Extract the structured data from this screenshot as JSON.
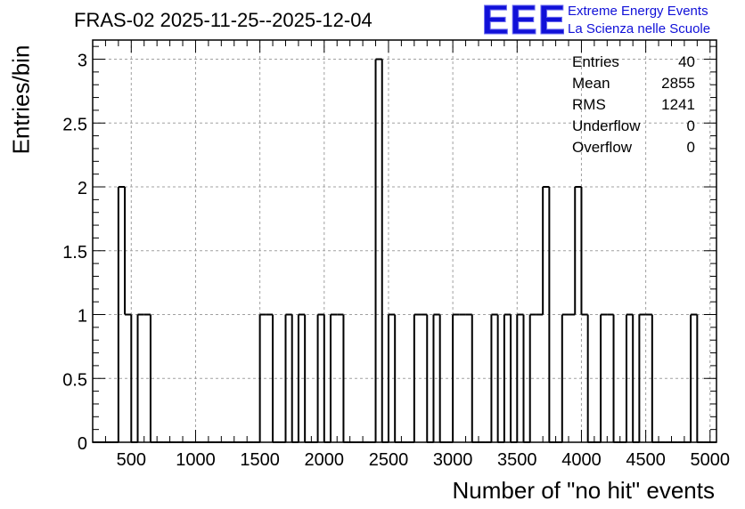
{
  "header": {
    "title": "FRAS-02 2025-11-25--2025-12-04",
    "logo_text": "EEE",
    "logo_line1": "Extreme Energy Events",
    "logo_line2": "La Scienza nelle Scuole"
  },
  "stats_box": {
    "rows": [
      {
        "label": "Entries",
        "value": "40"
      },
      {
        "label": "Mean",
        "value": "2855"
      },
      {
        "label": "RMS",
        "value": "1241"
      },
      {
        "label": "Underflow",
        "value": "0"
      },
      {
        "label": "Overflow",
        "value": "0"
      }
    ]
  },
  "colors": {
    "line": "#000000",
    "grid": "#a0a0a0",
    "logo": "#1010d8"
  },
  "chart_data": {
    "type": "histogram",
    "title": "FRAS-02 2025-11-25--2025-12-04",
    "xlabel": "Number of \"no hit\" events",
    "ylabel": "Entries/bin",
    "xlim": [
      200,
      5050
    ],
    "ylim": [
      0,
      3.15
    ],
    "bin_width": 50,
    "grid": true,
    "x_ticks": [
      500,
      1000,
      1500,
      2000,
      2500,
      3000,
      3500,
      4000,
      4500,
      5000
    ],
    "y_ticks": [
      0,
      0.5,
      1,
      1.5,
      2,
      2.5,
      3
    ],
    "y_tick_labels": [
      "0",
      "0.5",
      "1",
      "1.5",
      "2",
      "2.5",
      "3"
    ],
    "bins": [
      {
        "x": 400,
        "count": 2
      },
      {
        "x": 450,
        "count": 1
      },
      {
        "x": 550,
        "count": 1
      },
      {
        "x": 600,
        "count": 1
      },
      {
        "x": 1500,
        "count": 1
      },
      {
        "x": 1550,
        "count": 1
      },
      {
        "x": 1700,
        "count": 1
      },
      {
        "x": 1800,
        "count": 1
      },
      {
        "x": 1950,
        "count": 1
      },
      {
        "x": 2050,
        "count": 1
      },
      {
        "x": 2100,
        "count": 1
      },
      {
        "x": 2400,
        "count": 3
      },
      {
        "x": 2500,
        "count": 1
      },
      {
        "x": 2700,
        "count": 1
      },
      {
        "x": 2750,
        "count": 1
      },
      {
        "x": 2850,
        "count": 1
      },
      {
        "x": 3000,
        "count": 1
      },
      {
        "x": 3050,
        "count": 1
      },
      {
        "x": 3100,
        "count": 1
      },
      {
        "x": 3300,
        "count": 1
      },
      {
        "x": 3400,
        "count": 1
      },
      {
        "x": 3500,
        "count": 1
      },
      {
        "x": 3600,
        "count": 1
      },
      {
        "x": 3650,
        "count": 1
      },
      {
        "x": 3700,
        "count": 2
      },
      {
        "x": 3850,
        "count": 1
      },
      {
        "x": 3900,
        "count": 1
      },
      {
        "x": 3950,
        "count": 2
      },
      {
        "x": 4000,
        "count": 1
      },
      {
        "x": 4150,
        "count": 1
      },
      {
        "x": 4200,
        "count": 1
      },
      {
        "x": 4350,
        "count": 1
      },
      {
        "x": 4450,
        "count": 1
      },
      {
        "x": 4500,
        "count": 1
      },
      {
        "x": 4850,
        "count": 1
      }
    ]
  }
}
